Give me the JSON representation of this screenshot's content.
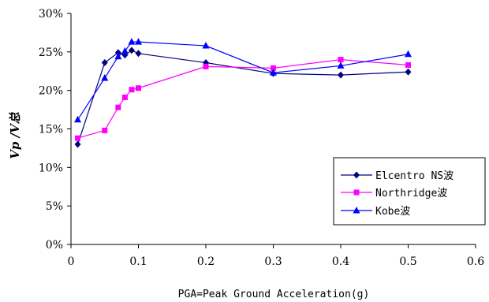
{
  "chart_data": {
    "type": "line",
    "xlabel": "PGA=Peak Ground Acceleration(g)",
    "ylabel": "Vp /V总",
    "xlim": [
      0,
      0.6
    ],
    "ylim": [
      0,
      0.3
    ],
    "x_ticks": [
      "0",
      "0.1",
      "0.2",
      "0.3",
      "0.4",
      "0.5",
      "0.6"
    ],
    "y_ticks": [
      "0%",
      "5%",
      "10%",
      "15%",
      "20%",
      "25%",
      "30%"
    ],
    "grid": false,
    "legend_position": "bottom-right",
    "series": [
      {
        "name": "Elcentro NS波",
        "color": "#000080",
        "marker": "diamond",
        "x": [
          0.01,
          0.05,
          0.07,
          0.08,
          0.09,
          0.1,
          0.2,
          0.3,
          0.4,
          0.5
        ],
        "y": [
          0.13,
          0.236,
          0.249,
          0.246,
          0.252,
          0.248,
          0.236,
          0.222,
          0.22,
          0.224
        ]
      },
      {
        "name": "Northridge波",
        "color": "#FF00FF",
        "marker": "square",
        "x": [
          0.01,
          0.05,
          0.07,
          0.08,
          0.09,
          0.1,
          0.2,
          0.3,
          0.4,
          0.5
        ],
        "y": [
          0.138,
          0.148,
          0.178,
          0.191,
          0.201,
          0.203,
          0.231,
          0.229,
          0.24,
          0.233
        ]
      },
      {
        "name": "Kobe波",
        "color": "#0000FF",
        "marker": "triangle",
        "x": [
          0.01,
          0.05,
          0.07,
          0.08,
          0.09,
          0.1,
          0.2,
          0.3,
          0.4,
          0.5
        ],
        "y": [
          0.162,
          0.216,
          0.244,
          0.251,
          0.263,
          0.263,
          0.258,
          0.223,
          0.232,
          0.247
        ]
      }
    ]
  }
}
